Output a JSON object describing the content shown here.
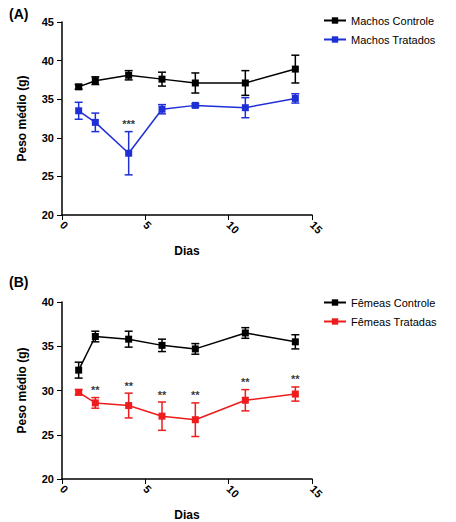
{
  "chart_data": [
    {
      "type": "line",
      "title": "(A)",
      "xlabel": "Dias",
      "ylabel": "Peso médio (g)",
      "x": [
        1,
        2,
        4,
        6,
        8,
        11,
        14
      ],
      "xlim": [
        0,
        15
      ],
      "xticks": [
        0,
        5,
        10,
        15
      ],
      "ylim": [
        20,
        45
      ],
      "yticks": [
        20,
        25,
        30,
        35,
        40,
        45
      ],
      "grid": false,
      "legend": "right",
      "series": [
        {
          "name": "Machos Controle",
          "color": "#000000",
          "marker": "square",
          "values": [
            36.6,
            37.4,
            38.1,
            37.6,
            37.1,
            37.1,
            38.9
          ],
          "errors": [
            0.3,
            0.5,
            0.6,
            0.9,
            1.3,
            1.6,
            1.8
          ]
        },
        {
          "name": "Machos Tratados",
          "color": "#1f2fd6",
          "marker": "square",
          "values": [
            33.5,
            32.0,
            28.0,
            33.7,
            34.2,
            33.9,
            35.1
          ],
          "errors": [
            1.1,
            1.2,
            2.8,
            0.6,
            0.2,
            1.3,
            0.6
          ]
        }
      ],
      "annotations": [
        {
          "x": 4,
          "text": "***",
          "series": "Machos Tratados"
        }
      ]
    },
    {
      "type": "line",
      "title": "(B)",
      "xlabel": "Dias",
      "ylabel": "Peso médio (g)",
      "x": [
        1,
        2,
        4,
        6,
        8,
        11,
        14
      ],
      "xlim": [
        0,
        15
      ],
      "xticks": [
        0,
        5,
        10,
        15
      ],
      "ylim": [
        20,
        40
      ],
      "yticks": [
        20,
        25,
        30,
        35,
        40
      ],
      "grid": false,
      "legend": "right",
      "series": [
        {
          "name": "Fêmeas Controle",
          "color": "#000000",
          "marker": "square",
          "values": [
            32.3,
            36.1,
            35.8,
            35.1,
            34.7,
            36.5,
            35.5
          ],
          "errors": [
            0.9,
            0.6,
            0.9,
            0.7,
            0.6,
            0.6,
            0.8
          ]
        },
        {
          "name": "Fêmeas Tratadas",
          "color": "#ee1c1c",
          "marker": "square",
          "values": [
            29.8,
            28.6,
            28.3,
            27.1,
            26.7,
            28.9,
            29.6
          ],
          "errors": [
            0.3,
            0.6,
            1.4,
            1.6,
            1.9,
            1.2,
            0.8
          ]
        }
      ],
      "annotations": [
        {
          "x": 2,
          "text": "**",
          "series": "Fêmeas Tratadas"
        },
        {
          "x": 4,
          "text": "**",
          "series": "Fêmeas Tratadas"
        },
        {
          "x": 6,
          "text": "**",
          "series": "Fêmeas Tratadas"
        },
        {
          "x": 8,
          "text": "**",
          "series": "Fêmeas Tratadas"
        },
        {
          "x": 11,
          "text": "**",
          "series": "Fêmeas Tratadas"
        },
        {
          "x": 14,
          "text": "**",
          "series": "Fêmeas Tratadas"
        }
      ]
    }
  ]
}
